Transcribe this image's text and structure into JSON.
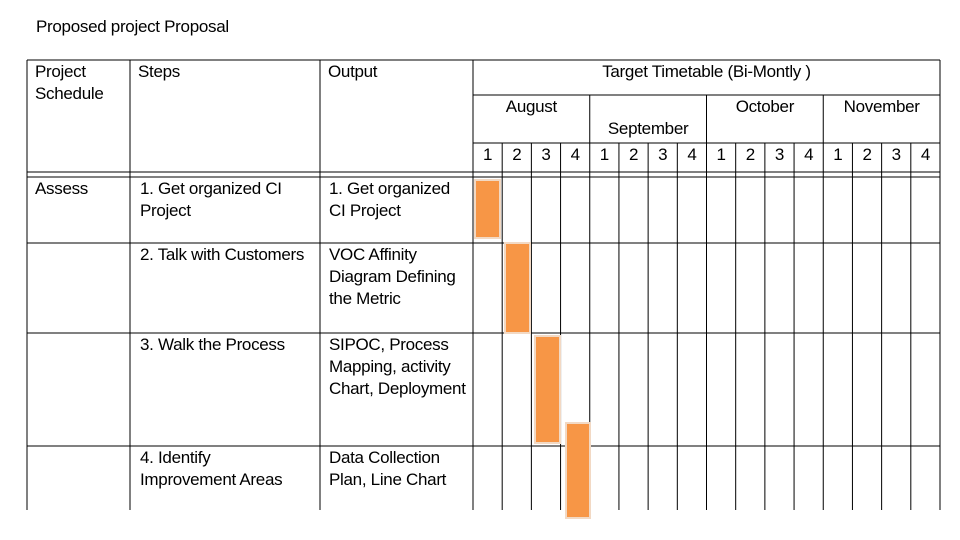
{
  "title": "Proposed project Proposal",
  "table": {
    "headers": [
      "Project Schedule",
      "Steps",
      "Output"
    ],
    "timetable_header": "Target Timetable (Bi-Montly )",
    "months": [
      {
        "name": "August",
        "weeks": [
          "1",
          "2",
          "3",
          "4"
        ]
      },
      {
        "name": "September",
        "weeks": [
          "1",
          "2",
          "3",
          "4"
        ]
      },
      {
        "name": "October",
        "weeks": [
          "1",
          "2",
          "3",
          "4"
        ]
      },
      {
        "name": "November",
        "weeks": [
          "1",
          "2",
          "3",
          "4"
        ]
      }
    ],
    "rows": [
      {
        "phase": "Assess",
        "step": "1. Get organized CI Project",
        "output": "1. Get organized CI Project"
      },
      {
        "step": "2. Talk with Customers",
        "output": "VOC Affinity Diagram Defining the Metric"
      },
      {
        "step": "3. Walk the Process",
        "output": "SIPOC, Process Mapping, activity Chart, Deployment"
      },
      {
        "step": "4. Identify Improvement Areas",
        "output": "Data Collection Plan, Line Chart"
      }
    ]
  }
}
